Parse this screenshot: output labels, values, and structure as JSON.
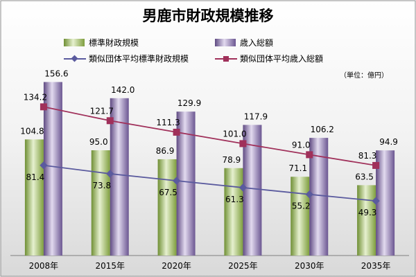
{
  "chart_data": {
    "type": "bar",
    "title": "男鹿市財政規模推移",
    "unit_note": "（単位：億円）",
    "categories": [
      "2008年",
      "2015年",
      "2020年",
      "2025年",
      "2030年",
      "2035年"
    ],
    "ylim": [
      0,
      170
    ],
    "grid": false,
    "legend_position": "top",
    "series": [
      {
        "name": "標準財政規模",
        "kind": "bar",
        "color": "#9bbb59",
        "values": [
          104.8,
          95.0,
          86.9,
          78.9,
          71.1,
          63.5
        ],
        "labels": [
          "104.8",
          "95.0",
          "86.9",
          "78.9",
          "71.1",
          "63.5"
        ]
      },
      {
        "name": "歳入総額",
        "kind": "bar",
        "color": "#8064a2",
        "values": [
          156.6,
          142.0,
          129.9,
          117.9,
          106.2,
          94.9
        ],
        "labels": [
          "156.6",
          "142.0",
          "129.9",
          "117.9",
          "106.2",
          "94.9"
        ]
      },
      {
        "name": "類似団体平均標準財政規模",
        "kind": "line",
        "marker": "diamond",
        "color": "#5a5a9e",
        "values": [
          81.4,
          73.8,
          67.5,
          61.3,
          55.2,
          49.3
        ],
        "labels": [
          "81.4",
          "73.8",
          "67.5",
          "61.3",
          "55.2",
          "49.3"
        ]
      },
      {
        "name": "類似団体平均歳入総額",
        "kind": "line",
        "marker": "square",
        "color": "#a0305a",
        "values": [
          134.2,
          121.7,
          111.3,
          101.0,
          91.0,
          81.3
        ],
        "labels": [
          "134.2",
          "121.7",
          "111.3",
          "101.0",
          "91.0",
          "81.3"
        ]
      }
    ]
  }
}
